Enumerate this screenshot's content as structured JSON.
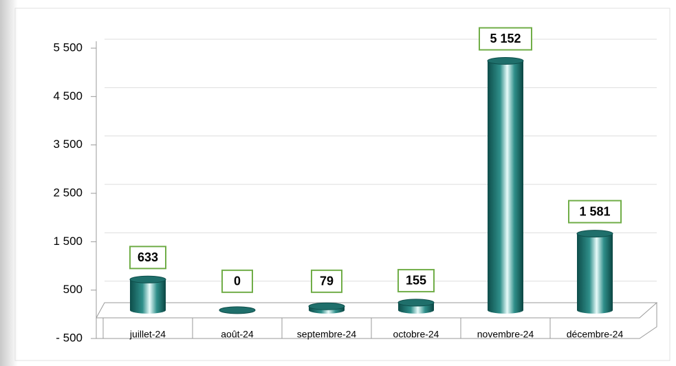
{
  "chart_data": {
    "type": "bar",
    "categories": [
      "juillet-24",
      "août-24",
      "septembre-24",
      "octobre-24",
      "novembre-24",
      "décembre-24"
    ],
    "values": [
      633,
      0,
      79,
      155,
      5152,
      1581
    ],
    "value_labels": [
      "633",
      "0",
      "79",
      "155",
      "5 152",
      "1 581"
    ],
    "color": "#1f6f6b",
    "ylim": [
      -500,
      5500
    ],
    "yticks": [
      {
        "value": -500,
        "label": "- 500"
      },
      500,
      {
        "value": 1500,
        "label": "1 500"
      },
      {
        "value": 2500,
        "label": "2 500"
      },
      {
        "value": 3500,
        "label": "3 500"
      },
      {
        "value": 4500,
        "label": "4 500"
      },
      {
        "value": 5500,
        "label": "5 500"
      }
    ],
    "grid": true
  }
}
